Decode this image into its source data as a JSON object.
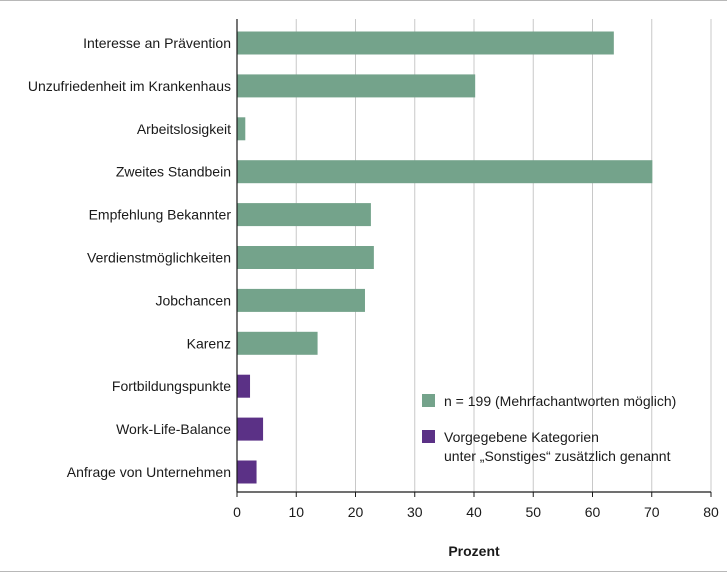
{
  "chart_data": {
    "type": "bar",
    "orientation": "horizontal",
    "categories": [
      "Interesse an Prävention",
      "Unzufriedenheit im Krankenhaus",
      "Arbeitslosigkeit",
      "Zweites Standbein",
      "Empfehlung Bekannter",
      "Verdienstmöglichkeiten",
      "Jobchancen",
      "Karenz",
      "Fortbildungspunkte",
      "Work-Life-Balance",
      "Anfrage von Unternehmen"
    ],
    "values": [
      63.6,
      40.2,
      1.4,
      70.1,
      22.6,
      23.1,
      21.6,
      13.6,
      2.2,
      4.4,
      3.3
    ],
    "series_index": [
      0,
      0,
      0,
      0,
      0,
      0,
      0,
      0,
      1,
      1,
      1
    ],
    "series": [
      {
        "name": "n = 199 (Mehrfachantworten möglich)",
        "color": "#74a38b"
      },
      {
        "name_lines": [
          "Vorgegebene Kategorien",
          "unter „Sonstiges“ zusätzlich genannt"
        ],
        "color": "#5b3186"
      }
    ],
    "xlabel": "Prozent",
    "ylabel": "",
    "xlim": [
      0,
      80
    ],
    "xticks": [
      0,
      10,
      20,
      30,
      40,
      50,
      60,
      70,
      80
    ],
    "grid": "vertical",
    "legend": "bottom-right"
  }
}
